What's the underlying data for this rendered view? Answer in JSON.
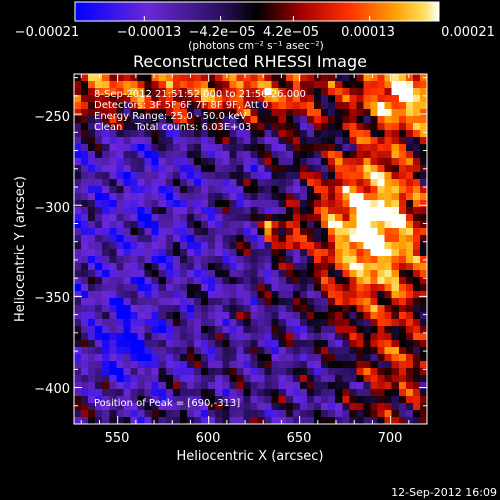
{
  "chart_data": {
    "type": "heatmap",
    "title": "Reconstructed RHESSI Image",
    "xlabel": "Heliocentric X (arcsec)",
    "ylabel": "Heliocentric Y (arcsec)",
    "xlim": [
      526,
      720
    ],
    "ylim": [
      -420,
      -228
    ],
    "x_ticks": [
      550,
      600,
      650,
      700
    ],
    "x_tick_labels": [
      "550",
      "600",
      "650",
      "700"
    ],
    "y_ticks": [
      -250,
      -300,
      -350,
      -400
    ],
    "y_tick_labels": [
      "−250",
      "−300",
      "−350",
      "−400"
    ],
    "colorbar": {
      "range": [
        -0.00021,
        0.00021
      ],
      "tick_values": [
        -0.00021,
        -0.00013,
        -4.2e-05,
        4.2e-05,
        0.00013,
        0.00021
      ],
      "tick_labels": [
        "−0.00021",
        "−0.00013",
        "−4.2e−05",
        "4.2e−05",
        "0.00013",
        "0.00021"
      ],
      "units": "(photons cm⁻² s⁻¹ asec⁻²)",
      "colors": [
        "#0000ff",
        "#7b2bdc",
        "#4a1a8c",
        "#000000",
        "#c00000",
        "#ff6000",
        "#ffd000",
        "#ffffff"
      ]
    },
    "annotations": [
      "8-Sep-2012 21:51:52.000 to 21:56:26.000",
      "Detectors: 3F 5F 6F 7F 8F 9F, Att 0",
      "Energy Range: 25.0 - 50.0 keV",
      "Clean    Total counts: 6.03E+03"
    ],
    "peak_label": "Position of Peak = [690,-313]",
    "peak": {
      "x": 690,
      "y": -313
    }
  },
  "footer": {
    "timestamp": "12-Sep-2012 16:09"
  }
}
